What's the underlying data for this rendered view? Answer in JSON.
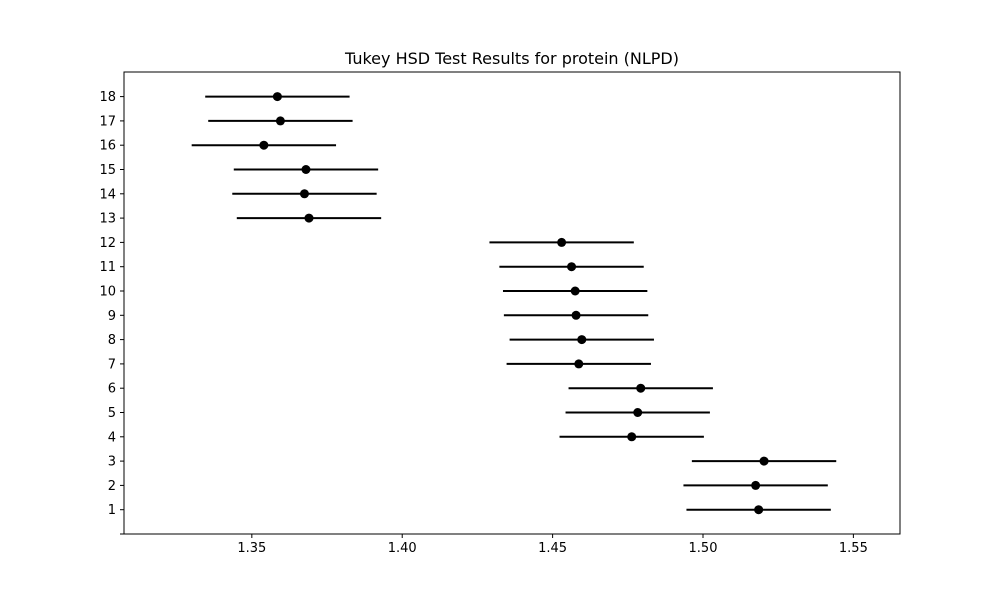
{
  "chart_data": {
    "type": "errorbar",
    "title": "Tukey HSD Test Results for protein (NLPD)",
    "xlabel": "",
    "ylabel": "",
    "xlim": [
      1.3075,
      1.5655
    ],
    "ylim": [
      0,
      18
    ],
    "xticks": [
      1.35,
      1.4,
      1.45,
      1.5,
      1.55
    ],
    "xtick_labels": [
      "1.35",
      "1.40",
      "1.45",
      "1.50",
      "1.55"
    ],
    "grid": false,
    "groups": [
      {
        "label": "18",
        "mean": 1.3585,
        "lower": 1.3345,
        "upper": 1.3825
      },
      {
        "label": "17",
        "mean": 1.3595,
        "lower": 1.3355,
        "upper": 1.3835
      },
      {
        "label": "16",
        "mean": 1.354,
        "lower": 1.33,
        "upper": 1.378
      },
      {
        "label": "15",
        "mean": 1.368,
        "lower": 1.344,
        "upper": 1.392
      },
      {
        "label": "14",
        "mean": 1.3675,
        "lower": 1.3435,
        "upper": 1.3915
      },
      {
        "label": "13",
        "mean": 1.369,
        "lower": 1.345,
        "upper": 1.393
      },
      {
        "label": "12",
        "mean": 1.453,
        "lower": 1.429,
        "upper": 1.477
      },
      {
        "label": "11",
        "mean": 1.4563,
        "lower": 1.4323,
        "upper": 1.4803
      },
      {
        "label": "10",
        "mean": 1.4575,
        "lower": 1.4335,
        "upper": 1.4815
      },
      {
        "label": "9",
        "mean": 1.4578,
        "lower": 1.4338,
        "upper": 1.4818
      },
      {
        "label": "8",
        "mean": 1.4597,
        "lower": 1.4357,
        "upper": 1.4837
      },
      {
        "label": "7",
        "mean": 1.4587,
        "lower": 1.4347,
        "upper": 1.4827
      },
      {
        "label": "6",
        "mean": 1.4793,
        "lower": 1.4553,
        "upper": 1.5033
      },
      {
        "label": "5",
        "mean": 1.4783,
        "lower": 1.4543,
        "upper": 1.5023
      },
      {
        "label": "4",
        "mean": 1.4763,
        "lower": 1.4523,
        "upper": 1.5003
      },
      {
        "label": "3",
        "mean": 1.5203,
        "lower": 1.4963,
        "upper": 1.5443
      },
      {
        "label": "2",
        "mean": 1.5175,
        "lower": 1.4935,
        "upper": 1.5415
      },
      {
        "label": "1",
        "mean": 1.5185,
        "lower": 1.4945,
        "upper": 1.5425
      }
    ]
  },
  "colors": {
    "marker": "#000000",
    "line": "#000000",
    "axes": "#000000",
    "background": "#ffffff"
  }
}
